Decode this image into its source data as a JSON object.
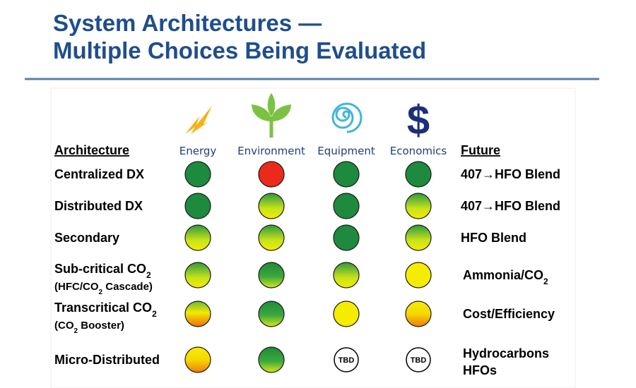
{
  "header": {
    "title_lines": [
      "System Architectures —",
      "Multiple Choices Being Evaluated"
    ]
  },
  "table": {
    "row_header": "Architecture",
    "future_header": "Future",
    "columns": [
      {
        "label": "Energy"
      },
      {
        "label": "Environment"
      },
      {
        "label": "Equipment"
      },
      {
        "label": "Economics",
        "icon": "$"
      }
    ],
    "rows": [
      {
        "architecture": [
          [
            {
              "text": "Centralized DX"
            }
          ]
        ],
        "ratings": [
          {
            "status": "dark-green"
          },
          {
            "status": "red"
          },
          {
            "status": "dark-green"
          },
          {
            "status": "dark-green"
          }
        ],
        "future": [
          [
            {
              "text": "407→HFO Blend"
            }
          ]
        ]
      },
      {
        "architecture": [
          [
            {
              "text": "Distributed DX"
            }
          ]
        ],
        "ratings": [
          {
            "status": "dark-green"
          },
          {
            "status": "green-yellow"
          },
          {
            "status": "dark-green"
          },
          {
            "status": "green-yellow"
          }
        ],
        "future": [
          [
            {
              "text": "407→HFO Blend"
            }
          ]
        ]
      },
      {
        "architecture": [
          [
            {
              "text": "Secondary"
            }
          ]
        ],
        "ratings": [
          {
            "status": "green-yellow"
          },
          {
            "status": "green-yellow"
          },
          {
            "status": "dark-green"
          },
          {
            "status": "green-yellow"
          }
        ],
        "future": [
          [
            {
              "text": "HFO Blend"
            }
          ]
        ]
      },
      {
        "architecture": [
          [
            {
              "text": "Sub-critical CO"
            },
            {
              "text": "2",
              "sub": true
            }
          ],
          [
            {
              "text": "(HFC/CO"
            },
            {
              "text": "2",
              "sub": true
            },
            {
              "text": " Cascade)"
            }
          ]
        ],
        "ratings": [
          {
            "status": "green-yellow"
          },
          {
            "status": "green"
          },
          {
            "status": "green-yellow"
          },
          {
            "status": "yellow"
          }
        ],
        "future": [
          [
            {
              "text": "Ammonia/CO"
            },
            {
              "text": "2",
              "sub": true
            }
          ]
        ]
      },
      {
        "architecture": [
          [
            {
              "text": "Transcritical CO"
            },
            {
              "text": "2",
              "sub": true
            }
          ],
          [
            {
              "text": "(CO"
            },
            {
              "text": "2",
              "sub": true
            },
            {
              "text": " Booster)"
            }
          ]
        ],
        "ratings": [
          {
            "status": "green-yellow-orange"
          },
          {
            "status": "green"
          },
          {
            "status": "yellow"
          },
          {
            "status": "yellow-orange"
          }
        ],
        "future": [
          [
            {
              "text": "Cost/Efficiency"
            }
          ]
        ]
      },
      {
        "architecture": [
          [
            {
              "text": "Micro-Distributed"
            }
          ]
        ],
        "ratings": [
          {
            "status": "yellow-orange"
          },
          {
            "status": "green"
          },
          {
            "status": "tbd",
            "label": "TBD"
          },
          {
            "status": "tbd",
            "label": "TBD"
          }
        ],
        "future": [
          [
            {
              "text": "Hydrocarbons"
            }
          ],
          [
            {
              "text": "HFOs"
            }
          ]
        ]
      }
    ]
  }
}
